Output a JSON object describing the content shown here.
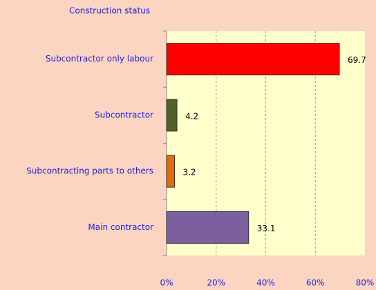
{
  "chart_data": {
    "type": "hbar",
    "title": "Construction status",
    "categories": [
      "Subcontractor only labour",
      "Subcontractor",
      "Subcontracting parts to others",
      "Main contractor"
    ],
    "values": [
      69.7,
      4.2,
      3.2,
      33.1
    ],
    "colors": [
      "#ff0000",
      "#4f6228",
      "#e36c09",
      "#7b5f9e"
    ],
    "xlim": [
      0,
      80
    ],
    "xticks": [
      {
        "value": 0,
        "label": "0%"
      },
      {
        "value": 20,
        "label": "20%"
      },
      {
        "value": 40,
        "label": "40%"
      },
      {
        "value": 60,
        "label": "60%"
      },
      {
        "value": 80,
        "label": "80%"
      }
    ],
    "grid": true
  }
}
